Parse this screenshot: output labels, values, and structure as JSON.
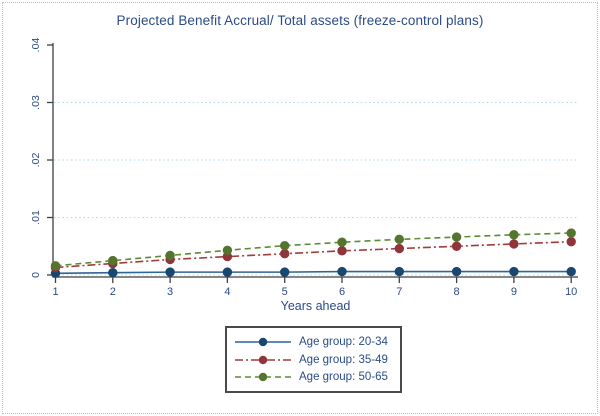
{
  "figure": {
    "title": "Projected Benefit Accrual/ Total assets (freeze-control plans)"
  },
  "colors": {
    "text_navy": "#2b4c87",
    "axis": "#3f3f3f",
    "grid": "#b5d9e6",
    "legend_border": "#4a4a4a",
    "background": "#ffffff"
  },
  "chart_data": {
    "type": "line",
    "title": "Projected Benefit Accrual/ Total assets (freeze-control plans)",
    "xlabel": "Years ahead",
    "ylabel": "",
    "x": [
      1,
      2,
      3,
      4,
      5,
      6,
      7,
      8,
      9,
      10
    ],
    "x_tick_labels": [
      "1",
      "2",
      "3",
      "4",
      "5",
      "6",
      "7",
      "8",
      "9",
      "10"
    ],
    "xlim": [
      1,
      10
    ],
    "ylim": [
      0,
      0.04
    ],
    "y_ticks": [
      0,
      0.01,
      0.02,
      0.03,
      0.04
    ],
    "y_tick_labels": [
      "0",
      ".01",
      ".02",
      ".03",
      ".04"
    ],
    "grid_values": [
      0,
      0.01,
      0.02,
      0.03
    ],
    "grid_style": "dotted horizontal light blue",
    "legend_position": "below-center-boxed",
    "series": [
      {
        "name": "Age group: 20-34",
        "color": "#2f6496",
        "marker_color": "#1a476f",
        "marker": "circle",
        "dash": "solid",
        "values": [
          0.0003,
          0.0004,
          0.0005,
          0.0005,
          0.0005,
          0.0006,
          0.0006,
          0.0006,
          0.0006,
          0.0006
        ]
      },
      {
        "name": "Age group: 35-49",
        "color": "#a23c3c",
        "marker_color": "#90353b",
        "marker": "circle",
        "dash": "dash-dot",
        "values": [
          0.0013,
          0.002,
          0.0027,
          0.0032,
          0.0037,
          0.0042,
          0.0046,
          0.005,
          0.0054,
          0.0058
        ]
      },
      {
        "name": "Age group: 50-65",
        "color": "#5e8b34",
        "marker_color": "#55752f",
        "marker": "circle",
        "dash": "dash",
        "values": [
          0.0016,
          0.0025,
          0.0034,
          0.0043,
          0.0051,
          0.0057,
          0.0062,
          0.0066,
          0.007,
          0.0073
        ]
      }
    ]
  }
}
